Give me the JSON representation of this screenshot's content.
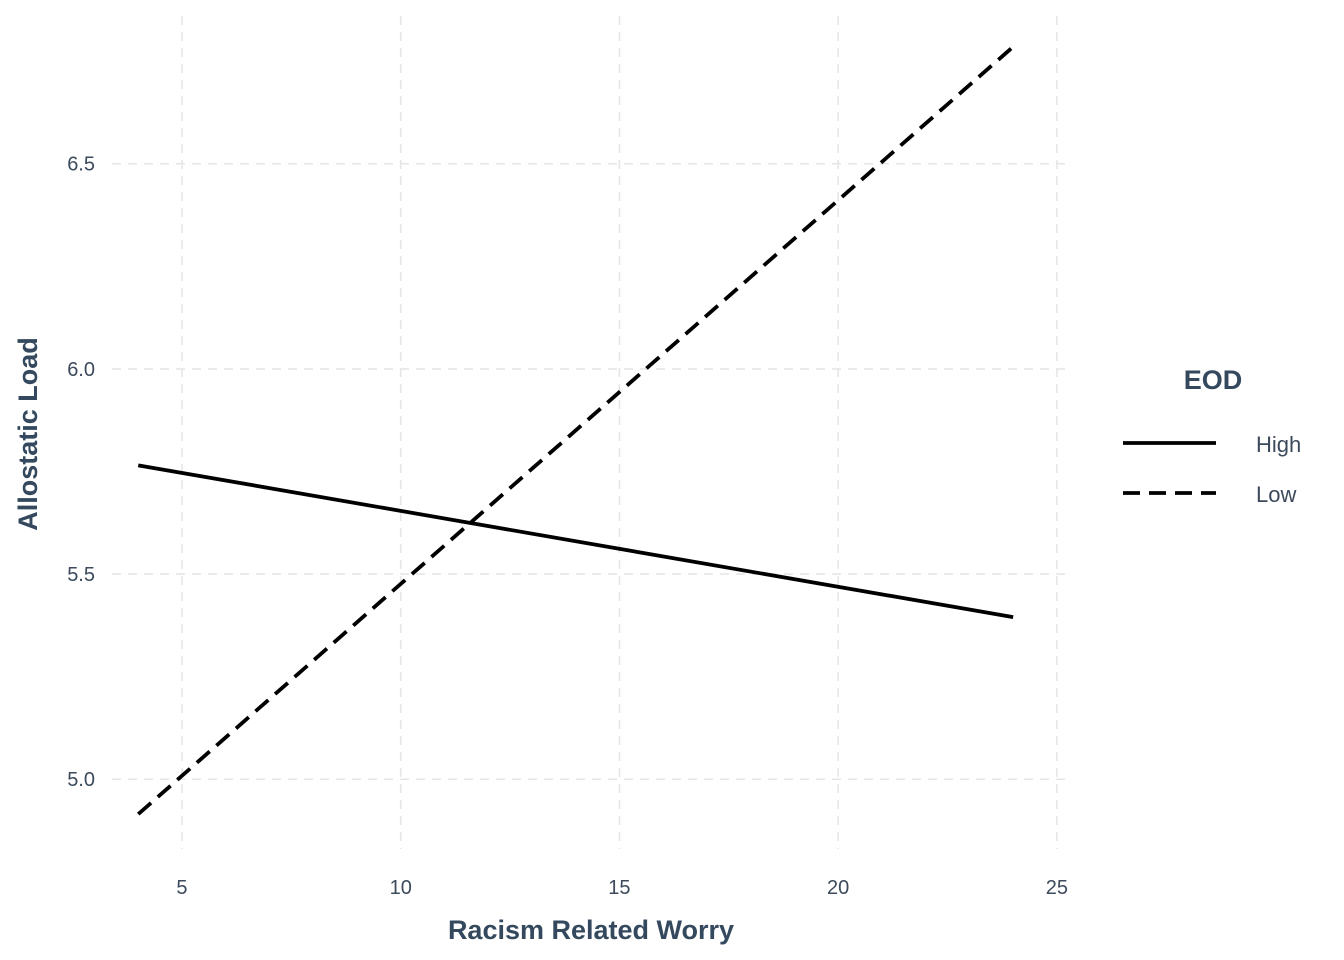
{
  "chart_data": {
    "type": "line",
    "xlabel": "Racism Related Worry",
    "ylabel": "Allostatic Load",
    "xlim": [
      3.4,
      25.3
    ],
    "ylim": [
      4.83,
      6.86
    ],
    "xticks": [
      5,
      10,
      15,
      20,
      25
    ],
    "yticks": [
      5.0,
      5.5,
      6.0,
      6.5
    ],
    "xtick_labels": [
      "5",
      "10",
      "15",
      "20",
      "25"
    ],
    "ytick_labels": [
      "5.0",
      "5.5",
      "6.0",
      "6.5"
    ],
    "grid": true,
    "legend": {
      "title": "EOD",
      "placement": "right"
    },
    "series": [
      {
        "name": "High",
        "linestyle": "solid",
        "x": [
          4,
          24
        ],
        "y": [
          5.765,
          5.395
        ]
      },
      {
        "name": "Low",
        "linestyle": "dashed",
        "x": [
          4,
          24
        ],
        "y": [
          4.915,
          6.785
        ]
      }
    ]
  }
}
